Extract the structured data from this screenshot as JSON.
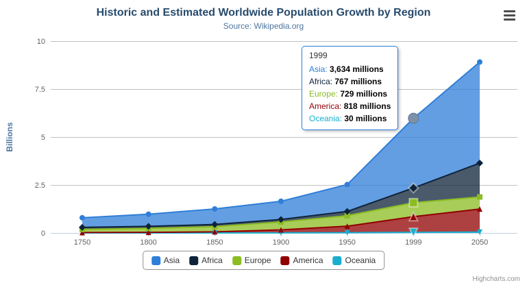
{
  "header": {
    "title": "Historic and Estimated Worldwide Population Growth by Region",
    "subtitle": "Source: Wikipedia.org"
  },
  "export_menu": {
    "icon": "hamburger-icon"
  },
  "chart_data": {
    "type": "area",
    "stacking": "normal",
    "title": "Historic and Estimated Worldwide Population Growth by Region",
    "subtitle": "Source: Wikipedia.org",
    "categories": [
      "1750",
      "1800",
      "1850",
      "1900",
      "1950",
      "1999",
      "2050"
    ],
    "series": [
      {
        "name": "Asia",
        "color": "#2f7ed8",
        "marker_symbol": "circle",
        "values": [
          502,
          635,
          809,
          947,
          1402,
          3634,
          5268
        ]
      },
      {
        "name": "Africa",
        "color": "#0d233a",
        "marker_symbol": "diamond",
        "values": [
          106,
          107,
          111,
          133,
          221,
          767,
          1766
        ]
      },
      {
        "name": "Europe",
        "color": "#8bbc21",
        "marker_symbol": "square",
        "values": [
          163,
          203,
          276,
          408,
          547,
          729,
          628
        ]
      },
      {
        "name": "America",
        "color": "#910000",
        "marker_symbol": "triangle",
        "values": [
          18,
          31,
          54,
          156,
          339,
          818,
          1201
        ]
      },
      {
        "name": "Oceania",
        "color": "#1aadce",
        "marker_symbol": "triangle-down",
        "values": [
          2,
          2,
          2,
          6,
          13,
          30,
          46
        ]
      }
    ],
    "values_unit": "millions",
    "y_unit": "billions",
    "ylabel": "Billions",
    "ylim": [
      0,
      10
    ],
    "yticks": [
      0,
      2.5,
      5,
      7.5,
      10
    ],
    "grid": true,
    "legend_position": "bottom",
    "hover_index": 5,
    "hover_category": "1999"
  },
  "tooltip": {
    "header": "1999",
    "rows": [
      {
        "name": "Asia",
        "value": "3,634 millions"
      },
      {
        "name": "Africa",
        "value": "767 millions"
      },
      {
        "name": "Europe",
        "value": "729 millions"
      },
      {
        "name": "America",
        "value": "818 millions"
      },
      {
        "name": "Oceania",
        "value": "30 millions"
      }
    ]
  },
  "credits": {
    "label": "Highcharts.com"
  }
}
